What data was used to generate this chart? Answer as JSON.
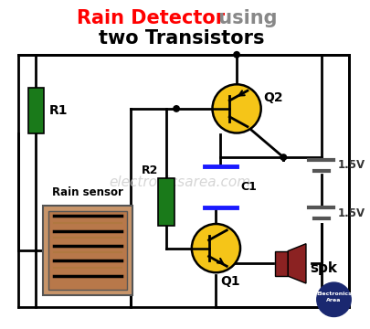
{
  "title_red": "Rain Detector",
  "title_gray": " using",
  "title2": "two Transistors",
  "bg_color": "#ffffff",
  "wire_color": "#000000",
  "resistor_color": "#1a7a1a",
  "transistor_fill": "#f5c518",
  "transistor_edge": "#000000",
  "capacitor_color": "#1a1aff",
  "speaker_body": "#8B2222",
  "watermark": "electronicsarea.com",
  "watermark_color": "#cccccc",
  "label_R1": "R1",
  "label_R2": "R2",
  "label_Q1": "Q1",
  "label_Q2": "Q2",
  "label_C1": "C1",
  "label_spk": "spk",
  "label_rain": "Rain sensor",
  "label_bat1": "1.5V",
  "label_bat2": "1.5V",
  "logo_color": "#1a2870",
  "sensor_bg": "#c8956a",
  "sensor_trace": "#000000",
  "sensor_trace2": "#b07840"
}
